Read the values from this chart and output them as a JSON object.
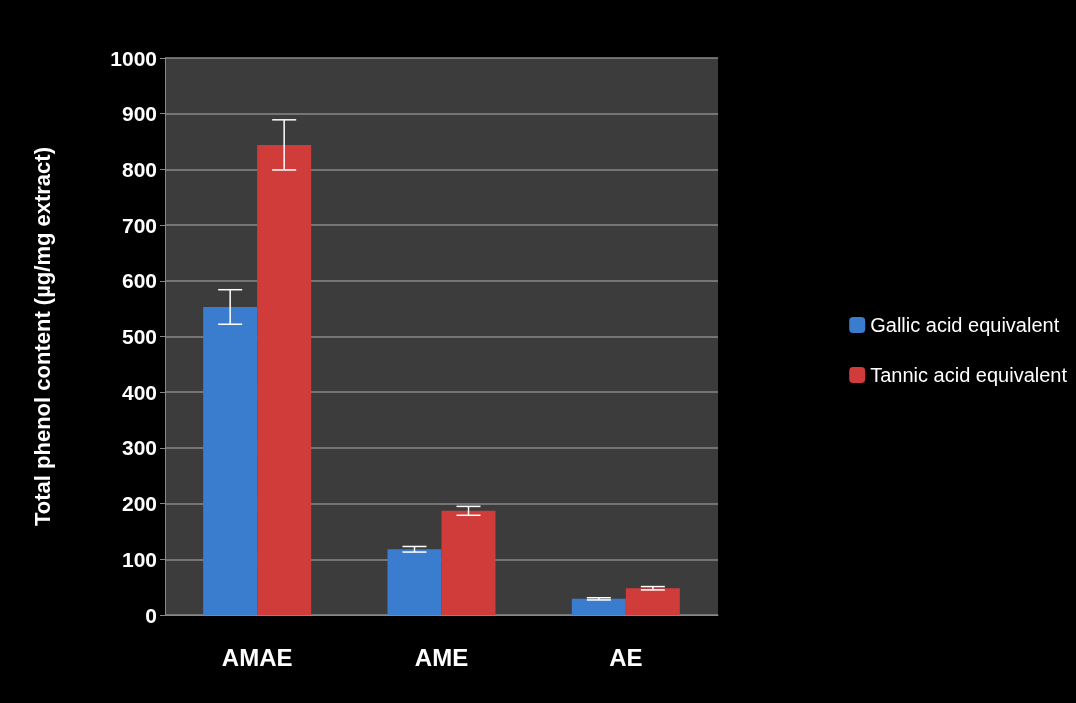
{
  "chart_data": {
    "type": "bar",
    "ylabel": "Total phenol content (µg/mg extract)",
    "categories": [
      "AMAE",
      "AME",
      "AE"
    ],
    "series": [
      {
        "name": "Gallic acid equivalent",
        "color": "#3a7dce",
        "values": [
          553,
          118,
          29
        ],
        "errors": [
          31,
          5,
          2
        ]
      },
      {
        "name": "Tannic acid equivalent",
        "color": "#d03c3a",
        "values": [
          844,
          187,
          48
        ],
        "errors": [
          45,
          8,
          3
        ]
      }
    ],
    "ylim": [
      0,
      1000
    ],
    "yticks": [
      0,
      100,
      200,
      300,
      400,
      500,
      600,
      700,
      800,
      900,
      1000
    ],
    "grid": "y",
    "legend": "right"
  }
}
